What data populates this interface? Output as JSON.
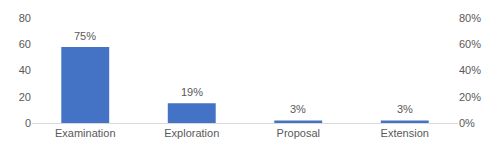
{
  "chart_data": {
    "type": "bar",
    "categories": [
      "Examination",
      "Exploration",
      "Proposal",
      "Extension"
    ],
    "values": [
      58,
      15,
      2,
      2
    ],
    "color": "#4472c4",
    "ylim": [
      0,
      80
    ],
    "yticks": [
      0,
      20,
      40,
      60,
      80
    ],
    "y2lim": [
      0,
      80
    ],
    "y2ticks": [
      {
        "value": 0,
        "label": "0%"
      },
      {
        "value": 20,
        "label": "20%"
      },
      {
        "value": 40,
        "label": "40%"
      },
      {
        "value": 60,
        "label": "60%"
      },
      {
        "value": 80,
        "label": "80%"
      }
    ],
    "grid": false,
    "annotations": [
      {
        "category": "Examination",
        "text": "75%"
      },
      {
        "category": "Exploration",
        "text": "19%"
      },
      {
        "category": "Proposal",
        "text": "3%"
      },
      {
        "category": "Extension",
        "text": "3%"
      }
    ]
  }
}
